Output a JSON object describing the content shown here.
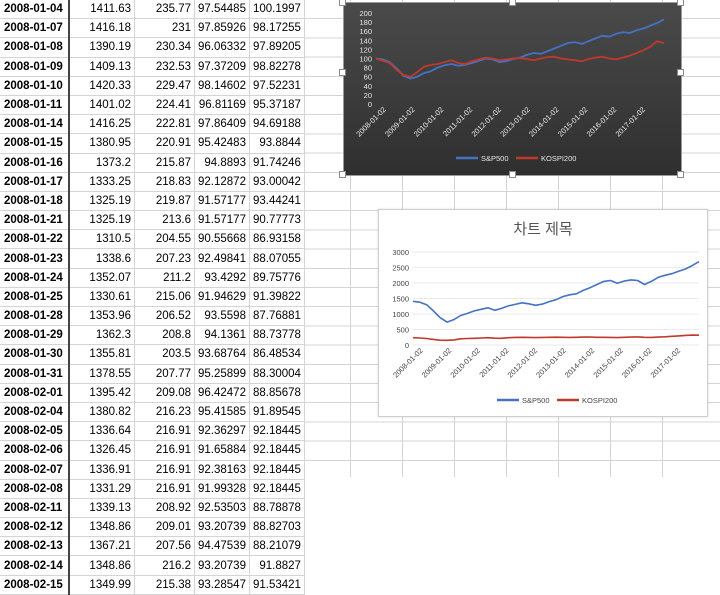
{
  "sheet": {
    "rows": [
      [
        "2008-01-04",
        "1411.63",
        "235.77",
        "97.54485",
        "100.1997"
      ],
      [
        "2008-01-07",
        "1416.18",
        "231",
        "97.85926",
        "98.17255"
      ],
      [
        "2008-01-08",
        "1390.19",
        "230.34",
        "96.06332",
        "97.89205"
      ],
      [
        "2008-01-09",
        "1409.13",
        "232.53",
        "97.37209",
        "98.82278"
      ],
      [
        "2008-01-10",
        "1420.33",
        "229.47",
        "98.14602",
        "97.52231"
      ],
      [
        "2008-01-11",
        "1401.02",
        "224.41",
        "96.81169",
        "95.37187"
      ],
      [
        "2008-01-14",
        "1416.25",
        "222.81",
        "97.86409",
        "94.69188"
      ],
      [
        "2008-01-15",
        "1380.95",
        "220.91",
        "95.42483",
        "93.8844"
      ],
      [
        "2008-01-16",
        "1373.2",
        "215.87",
        "94.8893",
        "91.74246"
      ],
      [
        "2008-01-17",
        "1333.25",
        "218.83",
        "92.12872",
        "93.00042"
      ],
      [
        "2008-01-18",
        "1325.19",
        "219.87",
        "91.57177",
        "93.44241"
      ],
      [
        "2008-01-21",
        "1325.19",
        "213.6",
        "91.57177",
        "90.77773"
      ],
      [
        "2008-01-22",
        "1310.5",
        "204.55",
        "90.55668",
        "86.93158"
      ],
      [
        "2008-01-23",
        "1338.6",
        "207.23",
        "92.49841",
        "88.07055"
      ],
      [
        "2008-01-24",
        "1352.07",
        "211.2",
        "93.4292",
        "89.75776"
      ],
      [
        "2008-01-25",
        "1330.61",
        "215.06",
        "91.94629",
        "91.39822"
      ],
      [
        "2008-01-28",
        "1353.96",
        "206.52",
        "93.5598",
        "87.76881"
      ],
      [
        "2008-01-29",
        "1362.3",
        "208.8",
        "94.1361",
        "88.73778"
      ],
      [
        "2008-01-30",
        "1355.81",
        "203.5",
        "93.68764",
        "86.48534"
      ],
      [
        "2008-01-31",
        "1378.55",
        "207.77",
        "95.25899",
        "88.30004"
      ],
      [
        "2008-02-01",
        "1395.42",
        "209.08",
        "96.42472",
        "88.85678"
      ],
      [
        "2008-02-04",
        "1380.82",
        "216.23",
        "95.41585",
        "91.89545"
      ],
      [
        "2008-02-05",
        "1336.64",
        "216.91",
        "92.36297",
        "92.18445"
      ],
      [
        "2008-02-06",
        "1326.45",
        "216.91",
        "91.65884",
        "92.18445"
      ],
      [
        "2008-02-07",
        "1336.91",
        "216.91",
        "92.38163",
        "92.18445"
      ],
      [
        "2008-02-08",
        "1331.29",
        "216.91",
        "91.99328",
        "92.18445"
      ],
      [
        "2008-02-11",
        "1339.13",
        "208.92",
        "92.53503",
        "88.78878"
      ],
      [
        "2008-02-12",
        "1348.86",
        "209.01",
        "93.20739",
        "88.82703"
      ],
      [
        "2008-02-13",
        "1367.21",
        "207.56",
        "94.47539",
        "88.21079"
      ],
      [
        "2008-02-14",
        "1348.86",
        "216.2",
        "93.20739",
        "91.8827"
      ],
      [
        "2008-02-15",
        "1349.99",
        "215.38",
        "93.28547",
        "91.53421"
      ]
    ]
  },
  "chart_data": [
    {
      "type": "line",
      "theme": "dark",
      "title": "",
      "x_ticks": [
        "2008-01-02",
        "2009-01-02",
        "2010-01-02",
        "2011-01-02",
        "2012-01-02",
        "2013-01-02",
        "2014-01-02",
        "2015-01-02",
        "2016-01-02",
        "2017-01-02"
      ],
      "y_ticks": [
        "0",
        "20",
        "40",
        "60",
        "80",
        "100",
        "120",
        "140",
        "160",
        "180",
        "200"
      ],
      "ylim": [
        0,
        200
      ],
      "legend_position": "bottom",
      "series": [
        {
          "name": "S&P500",
          "color": "#4472c4",
          "values": [
            100,
            98,
            92,
            78,
            62,
            56,
            60,
            68,
            72,
            80,
            85,
            88,
            84,
            86,
            90,
            95,
            100,
            98,
            92,
            94,
            99,
            102,
            108,
            112,
            110,
            116,
            122,
            128,
            134,
            136,
            132,
            138,
            144,
            150,
            148,
            154,
            158,
            156,
            162,
            166,
            172,
            178,
            186
          ]
        },
        {
          "name": "KOSPI200",
          "color": "#c0392b",
          "values": [
            100,
            95,
            90,
            75,
            64,
            60,
            70,
            82,
            86,
            88,
            92,
            96,
            90,
            88,
            94,
            98,
            102,
            100,
            96,
            98,
            100,
            101,
            99,
            96,
            100,
            103,
            104,
            100,
            98,
            96,
            94,
            99,
            102,
            104,
            100,
            98,
            102,
            106,
            112,
            118,
            126,
            138,
            134
          ]
        }
      ]
    },
    {
      "type": "line",
      "theme": "light",
      "title": "차트 제목",
      "x_ticks": [
        "2008-01-02",
        "2009-01-02",
        "2010-01-02",
        "2011-01-02",
        "2012-01-02",
        "2013-01-02",
        "2014-01-02",
        "2015-01-02",
        "2016-01-02",
        "2017-01-02"
      ],
      "y_ticks": [
        "0",
        "500",
        "1000",
        "1500",
        "2000",
        "2500",
        "3000"
      ],
      "ylim": [
        0,
        3000
      ],
      "legend_position": "bottom",
      "series": [
        {
          "name": "S&P500",
          "color": "#4472c4",
          "values": [
            1411,
            1380,
            1300,
            1100,
            880,
            740,
            820,
            950,
            1020,
            1100,
            1150,
            1200,
            1120,
            1180,
            1260,
            1310,
            1360,
            1330,
            1280,
            1320,
            1400,
            1460,
            1560,
            1620,
            1650,
            1760,
            1850,
            1950,
            2050,
            2080,
            1990,
            2060,
            2100,
            2080,
            1950,
            2050,
            2180,
            2250,
            2300,
            2380,
            2450,
            2560,
            2690
          ]
        },
        {
          "name": "KOSPI200",
          "color": "#c0392b",
          "values": [
            235,
            225,
            210,
            180,
            155,
            150,
            165,
            200,
            210,
            215,
            225,
            235,
            220,
            215,
            235,
            245,
            250,
            245,
            240,
            245,
            250,
            252,
            248,
            245,
            250,
            255,
            258,
            250,
            248,
            245,
            240,
            248,
            255,
            260,
            250,
            246,
            255,
            265,
            280,
            295,
            310,
            320,
            315
          ]
        }
      ]
    }
  ]
}
